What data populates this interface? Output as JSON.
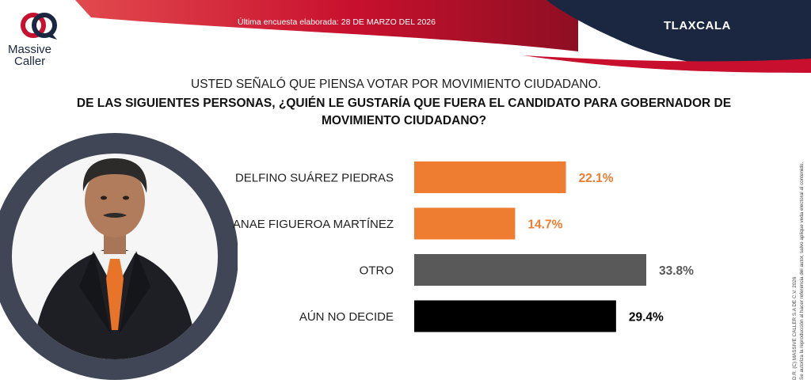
{
  "brand": {
    "name_line1": "Massive",
    "name_line2": "Caller"
  },
  "header": {
    "survey_date": "Última encuesta elaborada: 28 DE MARZO DEL 2026",
    "region": "TLAXCALA"
  },
  "colors": {
    "navy": "#1b2740",
    "red": "#c8102e",
    "orange": "#ef7d31",
    "gray": "#595959",
    "black": "#000000"
  },
  "intro": "USTED SEÑALÓ QUE PIENSA VOTAR POR MOVIMIENTO CIUDADANO.",
  "question": "DE LAS SIGUIENTES PERSONAS, ¿QUIÉN LE GUSTARÍA QUE FUERA EL CANDIDATO PARA GOBERNADOR DE MOVIMIENTO CIUDADANO?",
  "credit": {
    "line1": "D.R. (C) MASSIVE CALLER S.A DE C.V. 2026",
    "line2": "Se autoriza la reproducción al hacer referencia del autor, salvo aplique veda electoral al contenido."
  },
  "chart_data": {
    "type": "bar",
    "orientation": "horizontal",
    "categories": [
      "DELFINO SUÁREZ PIEDRAS",
      "ANAE FIGUEROA MARTÍNEZ",
      "OTRO",
      "AÚN NO DECIDE"
    ],
    "values": [
      22.1,
      14.7,
      33.8,
      29.4
    ],
    "value_labels": [
      "22.1%",
      "14.7%",
      "33.8%",
      "29.4%"
    ],
    "bar_colors": [
      "#ef7d31",
      "#ef7d31",
      "#595959",
      "#000000"
    ],
    "label_colors": [
      "#ef7d31",
      "#ef7d31",
      "#595959",
      "#000000"
    ],
    "title": "",
    "xlabel": "",
    "ylabel": "",
    "unit": "%",
    "xlim": [
      0,
      33.8
    ],
    "grid": false,
    "legend": "none"
  }
}
